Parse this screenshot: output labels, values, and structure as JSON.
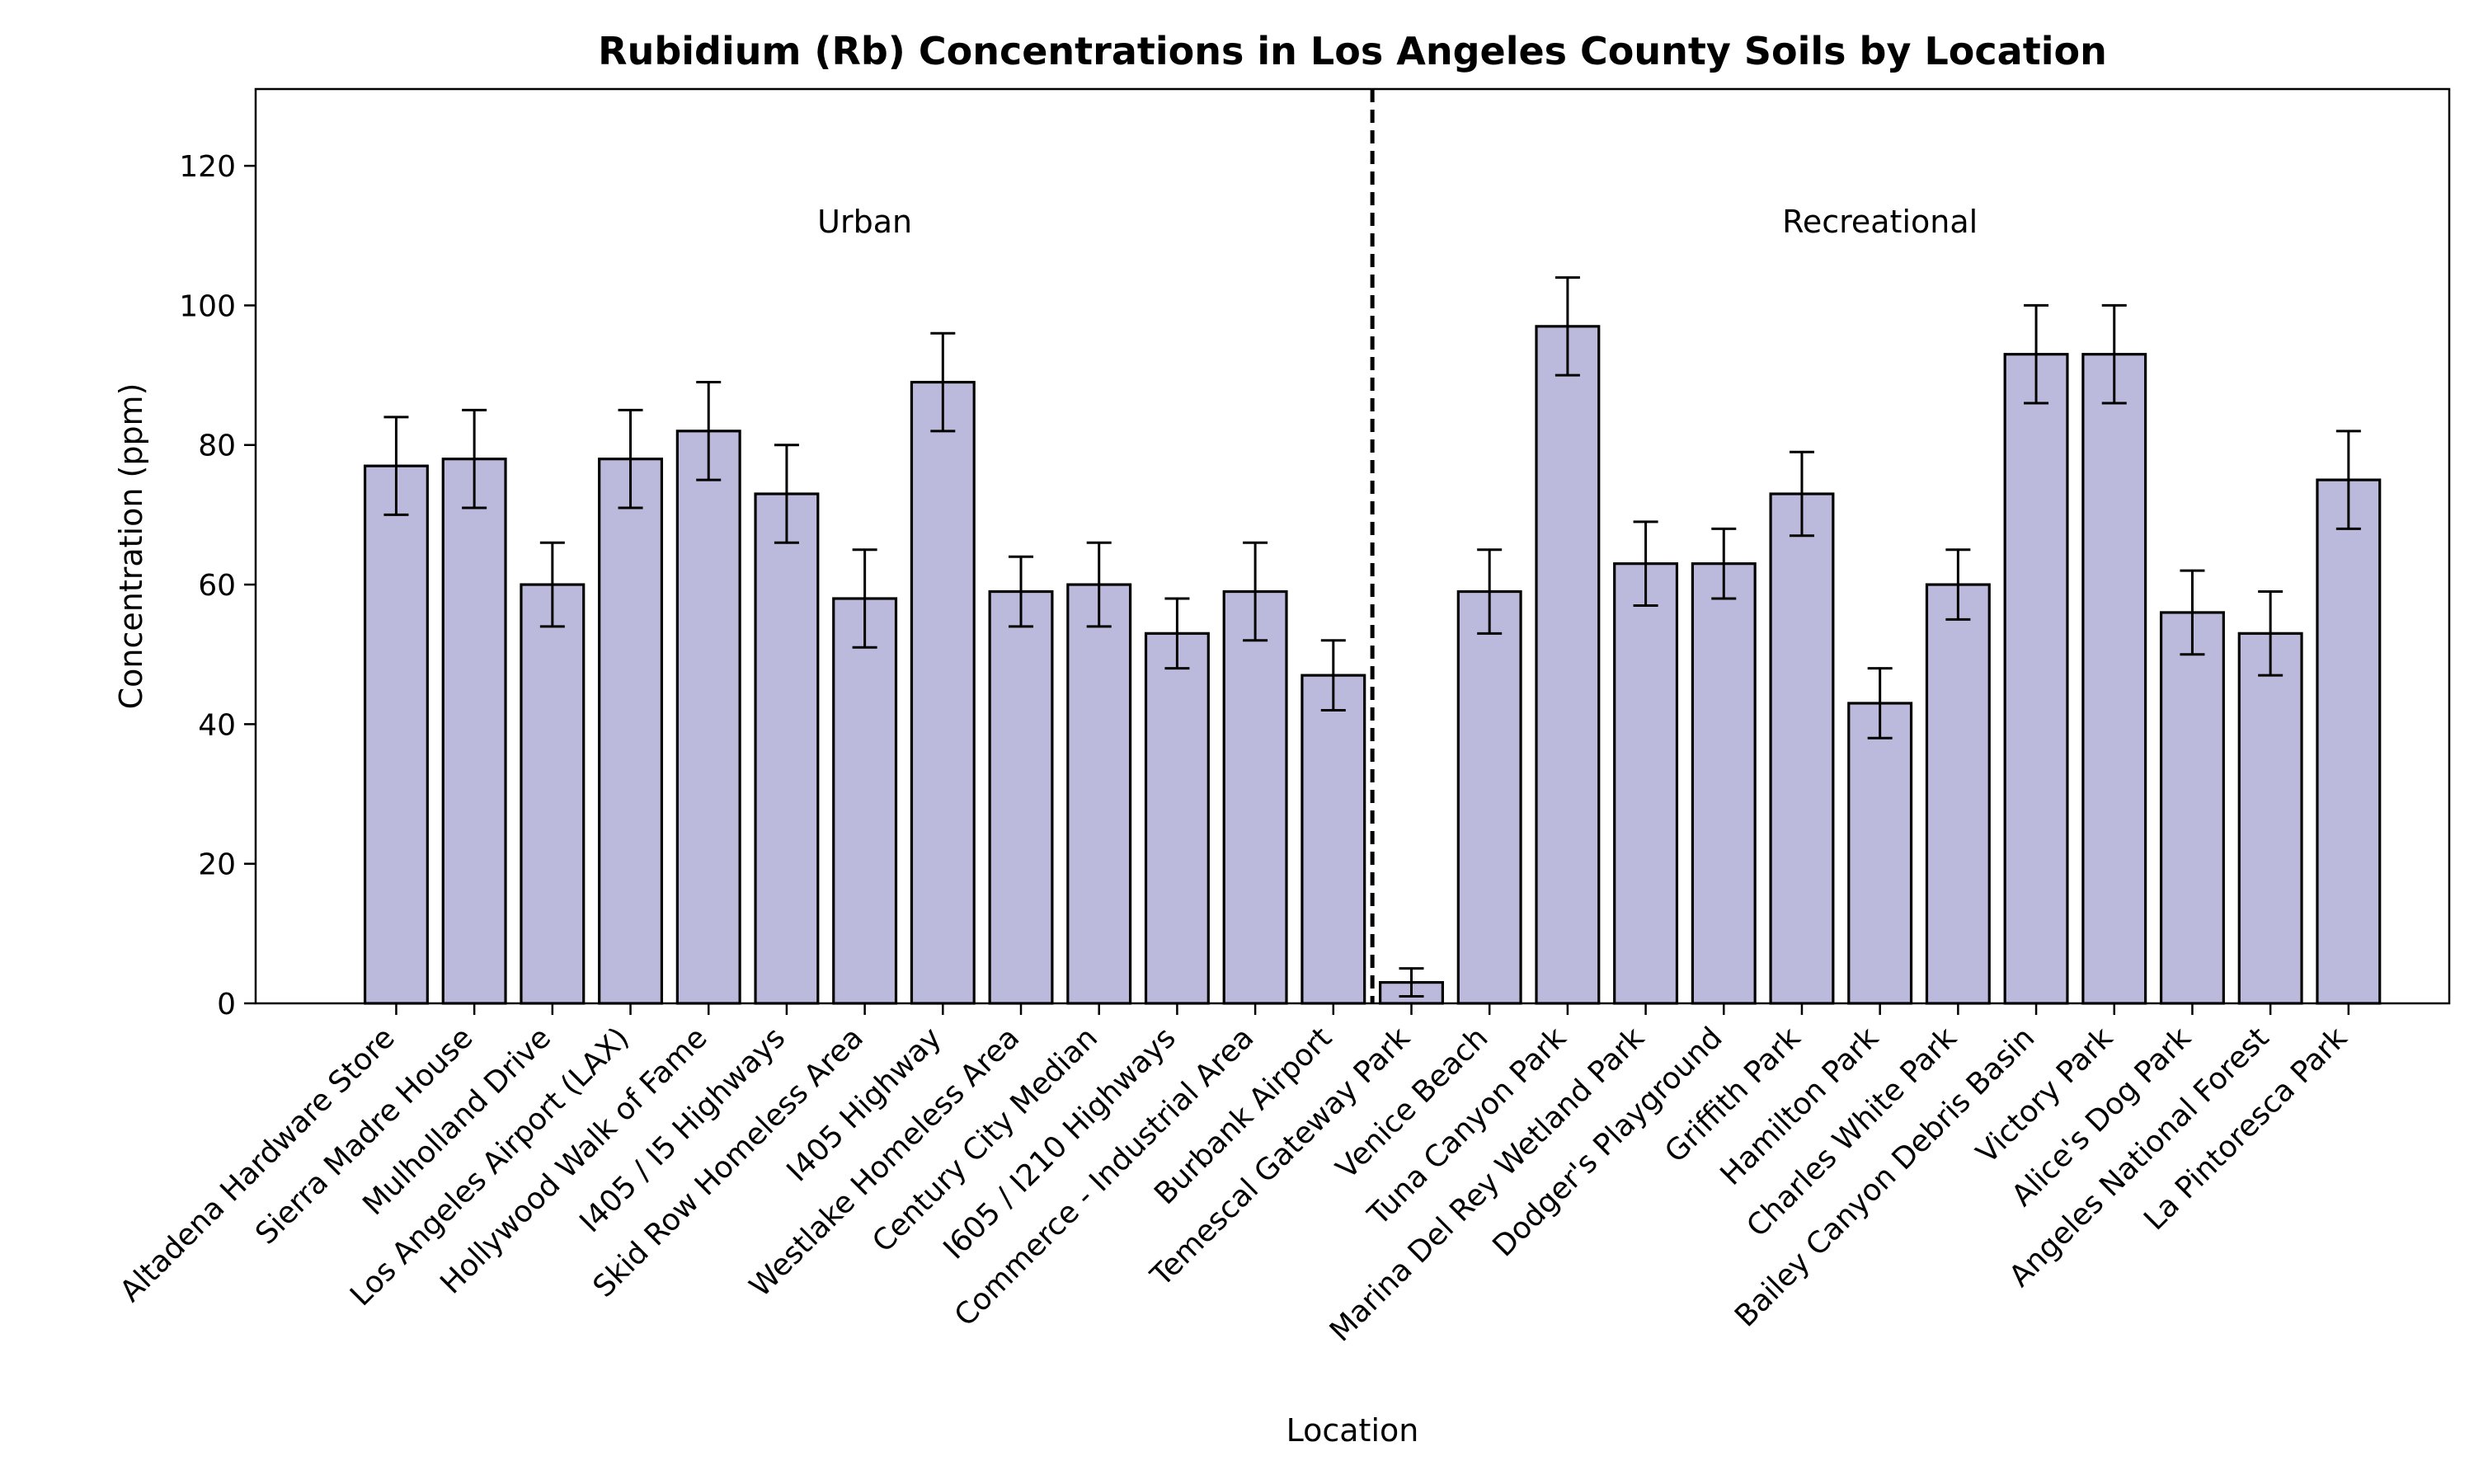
{
  "chart_data": {
    "type": "bar",
    "title": "Rubidium (Rb) Concentrations in Los Angeles County Soils by Location",
    "xlabel": "Location",
    "ylabel": "Concentration (ppm)",
    "ylim": [
      0,
      131
    ],
    "yticks": [
      0,
      20,
      40,
      60,
      80,
      100,
      120
    ],
    "grid": false,
    "categories": [
      "Altadena Hardware Store",
      "Sierra Madre House",
      "Mulholland Drive",
      "Los Angeles Airport (LAX)",
      "Hollywood Walk of Fame",
      "I405 / I5 Highways",
      "Skid Row Homeless Area",
      "I405 Highway",
      "Westlake Homeless Area",
      "Century City Median",
      "I605 / I210 Highways",
      "Commerce - Industrial Area",
      "Burbank Airport",
      "Temescal Gateway Park",
      "Venice Beach",
      "Tuna Canyon Park",
      "Marina Del Rey Wetland Park",
      "Dodger's Playground",
      "Griffith Park",
      "Hamilton Park",
      "Charles White Park",
      "Bailey Canyon Debris Basin",
      "Victory Park",
      "Alice's Dog Park",
      "Angeles National Forest",
      "La Pintoresca Park"
    ],
    "values": [
      77,
      78,
      60,
      78,
      82,
      73,
      58,
      89,
      59,
      60,
      53,
      59,
      47,
      3,
      59,
      97,
      63,
      63,
      73,
      43,
      60,
      93,
      93,
      56,
      53,
      75
    ],
    "errors": [
      7,
      7,
      6,
      7,
      7,
      7,
      7,
      7,
      5,
      6,
      5,
      7,
      5,
      2,
      6,
      7,
      6,
      5,
      6,
      5,
      5,
      7,
      7,
      6,
      6,
      7
    ],
    "bar_color": "#bcbadc",
    "edge_color": "#000000",
    "divider": {
      "after_index": 12,
      "style": "dashed"
    },
    "groups": [
      {
        "label": "Urban",
        "y": 112,
        "start_index": 0,
        "end_index": 12
      },
      {
        "label": "Recreational",
        "y": 112,
        "start_index": 13,
        "end_index": 25
      }
    ]
  }
}
